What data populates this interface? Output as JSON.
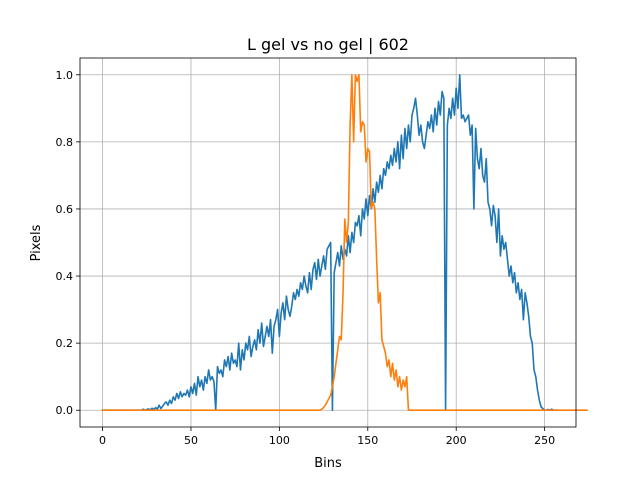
{
  "chart_data": {
    "type": "line",
    "title": "L gel vs no gel | 602",
    "xlabel": "Bins",
    "ylabel": "Pixels",
    "xlim": [
      -12.75,
      267.75
    ],
    "ylim": [
      -0.05,
      1.05
    ],
    "xticks": [
      0,
      50,
      100,
      150,
      200,
      250
    ],
    "yticks": [
      0.0,
      0.2,
      0.4,
      0.6,
      0.8,
      1.0
    ],
    "xtick_labels": [
      "0",
      "50",
      "100",
      "150",
      "200",
      "250"
    ],
    "ytick_labels": [
      "0.0",
      "0.2",
      "0.4",
      "0.6",
      "0.8",
      "1.0"
    ],
    "grid": true,
    "colors": {
      "series_1": "#1f77b4",
      "series_2": "#ff7f0e",
      "grid": "#b0b0b0"
    },
    "series": [
      {
        "x_start": 0,
        "x_step": 1,
        "values": [
          0,
          0,
          0,
          0,
          0,
          0,
          0,
          0,
          0,
          0,
          0,
          0,
          0,
          0,
          0,
          0,
          0,
          0,
          0,
          0,
          0,
          0,
          0,
          0.003,
          0,
          0.002,
          0.004,
          0.001,
          0.006,
          0.002,
          0.008,
          0.003,
          0.015,
          0.005,
          0.012,
          0.02,
          0.025,
          0.015,
          0.03,
          0.02,
          0.04,
          0.03,
          0.05,
          0.035,
          0.055,
          0.04,
          0.05,
          0.045,
          0.06,
          0.04,
          0.07,
          0.05,
          0.08,
          0.045,
          0.1,
          0.07,
          0.09,
          0.06,
          0.1,
          0.08,
          0.12,
          0.09,
          0.1,
          0.085,
          0.0,
          0.13,
          0.11,
          0.12,
          0.1,
          0.15,
          0.13,
          0.16,
          0.12,
          0.17,
          0.14,
          0.15,
          0.13,
          0.2,
          0.12,
          0.18,
          0.15,
          0.2,
          0.18,
          0.22,
          0.16,
          0.19,
          0.21,
          0.18,
          0.24,
          0.2,
          0.26,
          0.19,
          0.22,
          0.25,
          0.22,
          0.27,
          0.17,
          0.25,
          0.27,
          0.3,
          0.22,
          0.29,
          0.32,
          0.27,
          0.34,
          0.3,
          0.28,
          0.31,
          0.35,
          0.33,
          0.36,
          0.34,
          0.38,
          0.36,
          0.4,
          0.37,
          0.35,
          0.41,
          0.36,
          0.42,
          0.44,
          0.39,
          0.45,
          0.4,
          0.43,
          0.46,
          0.42,
          0.48,
          0.49,
          0.5,
          0.0,
          0.41,
          0.44,
          0.47,
          0.43,
          0.49,
          0.45,
          0.48,
          0.46,
          0.52,
          0.47,
          0.53,
          0.5,
          0.56,
          0.55,
          0.58,
          0.52,
          0.6,
          0.57,
          0.63,
          0.58,
          0.64,
          0.6,
          0.66,
          0.62,
          0.68,
          0.65,
          0.7,
          0.66,
          0.72,
          0.7,
          0.74,
          0.72,
          0.76,
          0.73,
          0.78,
          0.74,
          0.8,
          0.72,
          0.82,
          0.75,
          0.84,
          0.78,
          0.85,
          0.8,
          0.88,
          0.9,
          0.93,
          0.88,
          0.82,
          0.85,
          0.8,
          0.78,
          0.82,
          0.86,
          0.84,
          0.88,
          0.83,
          0.9,
          0.85,
          0.92,
          0.88,
          0.95,
          0.93,
          0.0,
          0.85,
          0.9,
          0.87,
          0.93,
          0.88,
          0.96,
          0.9,
          1.0,
          0.87,
          0.88,
          0.86,
          0.87,
          0.88,
          0.82,
          0.85,
          0.6,
          0.84,
          0.75,
          0.72,
          0.78,
          0.7,
          0.68,
          0.75,
          0.62,
          0.6,
          0.55,
          0.61,
          0.58,
          0.5,
          0.6,
          0.46,
          0.52,
          0.48,
          0.5,
          0.45,
          0.4,
          0.43,
          0.38,
          0.41,
          0.35,
          0.38,
          0.33,
          0.36,
          0.27,
          0.35,
          0.32,
          0.28,
          0.22,
          0.2,
          0.12,
          0.1,
          0.06,
          0.03,
          0.01,
          0.005,
          0,
          0,
          0.002,
          0,
          0.003,
          0,
          0,
          0
        ]
      },
      {
        "x_start": 0,
        "x_step": 1,
        "values": [
          0,
          0,
          0,
          0,
          0,
          0,
          0,
          0,
          0,
          0,
          0,
          0,
          0,
          0,
          0,
          0,
          0,
          0,
          0,
          0,
          0,
          0,
          0,
          0,
          0,
          0,
          0,
          0,
          0,
          0,
          0,
          0,
          0,
          0,
          0,
          0,
          0,
          0,
          0,
          0,
          0,
          0,
          0,
          0,
          0,
          0,
          0,
          0,
          0,
          0,
          0,
          0,
          0,
          0,
          0,
          0,
          0,
          0,
          0,
          0,
          0,
          0,
          0,
          0,
          0,
          0,
          0,
          0,
          0,
          0,
          0,
          0,
          0,
          0,
          0,
          0,
          0,
          0,
          0,
          0,
          0,
          0,
          0,
          0,
          0,
          0,
          0,
          0,
          0,
          0,
          0,
          0,
          0,
          0,
          0,
          0,
          0,
          0,
          0,
          0,
          0,
          0,
          0,
          0,
          0,
          0,
          0,
          0,
          0,
          0,
          0,
          0,
          0,
          0,
          0,
          0,
          0,
          0,
          0,
          0,
          0,
          0,
          0,
          0,
          0.003,
          0.008,
          0.015,
          0.025,
          0.035,
          0.045,
          0.07,
          0.1,
          0.14,
          0.18,
          0.22,
          0.21,
          0.35,
          0.57,
          0.5,
          0.56,
          0.85,
          1.0,
          0.8,
          1.0,
          0.98,
          1.0,
          0.83,
          0.86,
          0.85,
          0.74,
          0.78,
          0.77,
          0.6,
          0.62,
          0.6,
          0.45,
          0.32,
          0.35,
          0.21,
          0.19,
          0.17,
          0.13,
          0.15,
          0.1,
          0.14,
          0.09,
          0.12,
          0.07,
          0.1,
          0.06,
          0.09,
          0.07,
          0.1,
          0.0,
          0,
          0,
          0,
          0,
          0,
          0,
          0,
          0,
          0,
          0,
          0,
          0,
          0,
          0,
          0,
          0,
          0,
          0,
          0,
          0,
          0,
          0,
          0,
          0,
          0,
          0,
          0,
          0,
          0,
          0,
          0,
          0,
          0,
          0,
          0,
          0,
          0,
          0,
          0,
          0,
          0,
          0,
          0,
          0,
          0,
          0,
          0,
          0,
          0,
          0,
          0,
          0,
          0,
          0,
          0,
          0,
          0,
          0,
          0,
          0,
          0,
          0,
          0,
          0,
          0,
          0,
          0,
          0,
          0,
          0,
          0,
          0,
          0,
          0,
          0,
          0,
          0,
          0,
          0,
          0,
          0,
          0,
          0,
          0,
          0,
          0,
          0,
          0,
          0,
          0,
          0,
          0,
          0,
          0,
          0,
          0,
          0,
          0,
          0,
          0,
          0
        ]
      }
    ]
  }
}
